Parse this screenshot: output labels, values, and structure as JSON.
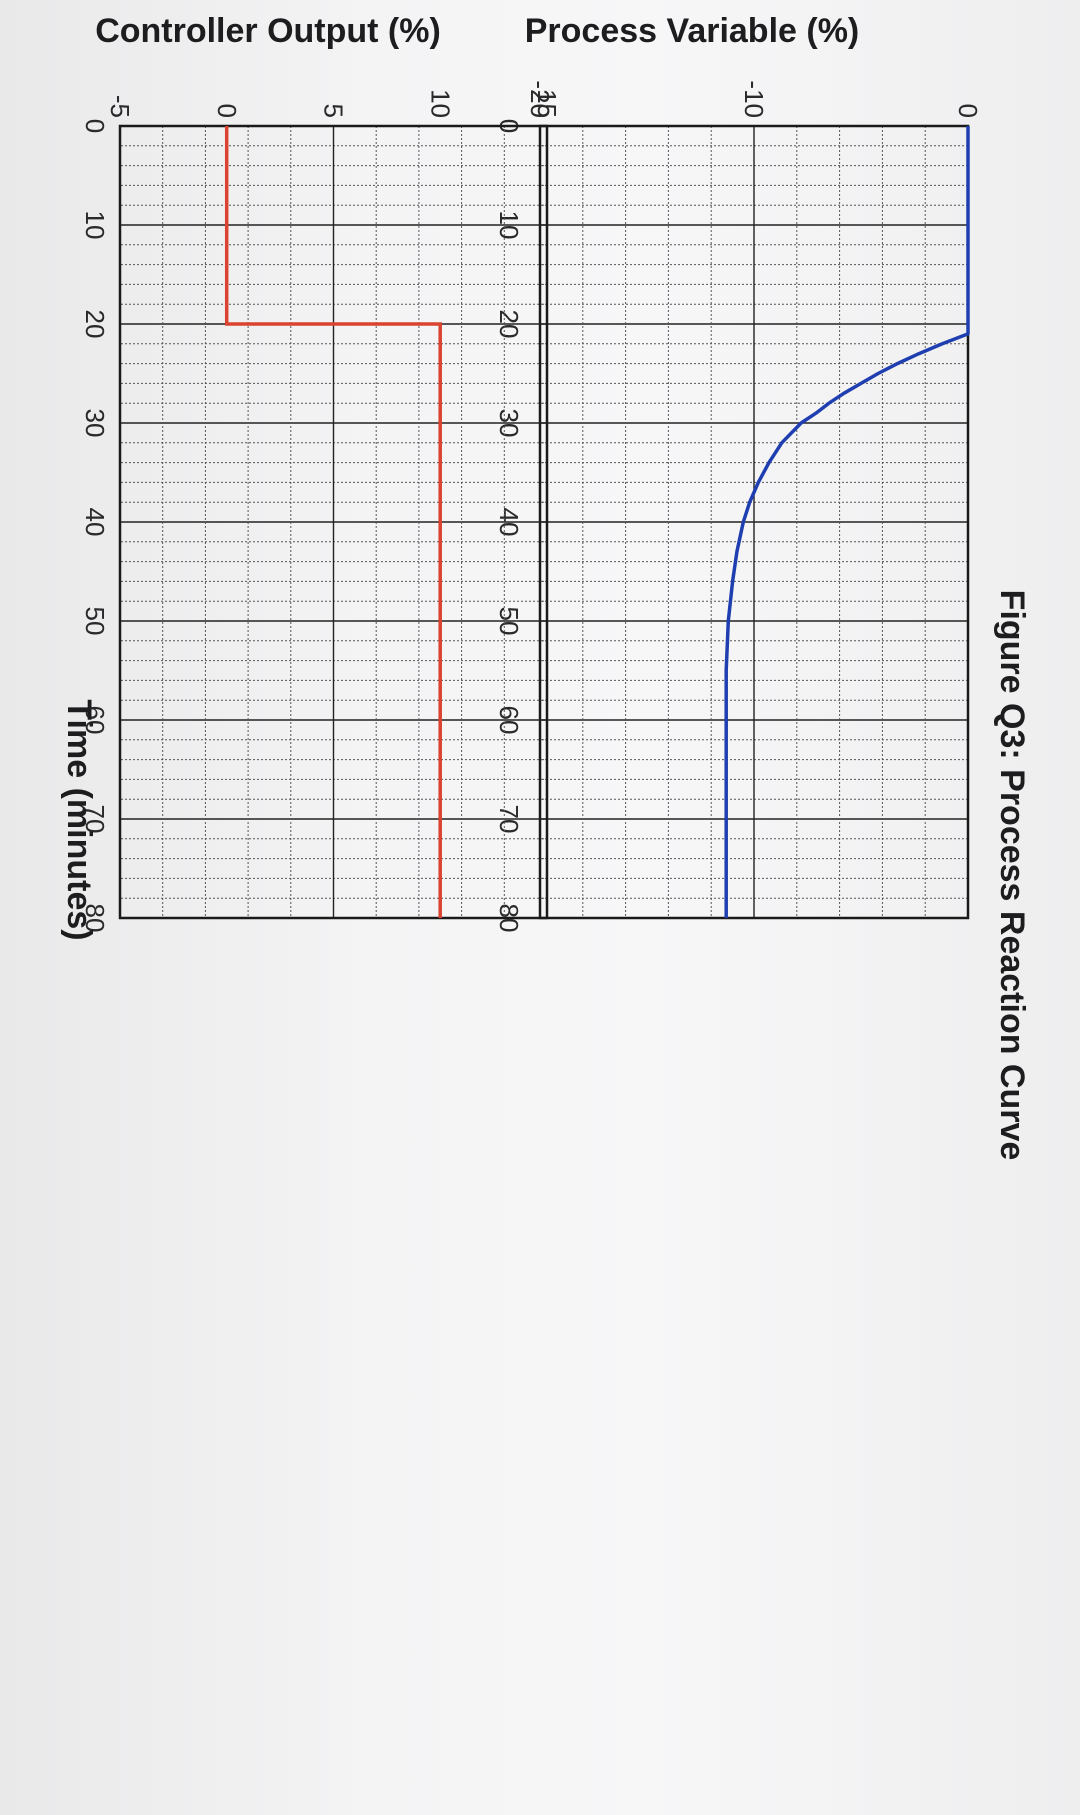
{
  "colors": {
    "pv_line": "#1f3fb0",
    "co_line": "#d9432f",
    "grid": "#333333",
    "background": "#f3f3f4"
  },
  "chart_data": [
    {
      "name": "process-variable",
      "type": "line",
      "title": "Figure Q3: Process Reaction Curve",
      "xlabel": "",
      "ylabel": "Process Variable (%)",
      "xlim": [
        0,
        80
      ],
      "ylim": [
        -20,
        0
      ],
      "xticks": [
        "0",
        "10",
        "20",
        "30",
        "40",
        "50",
        "60",
        "70",
        "80"
      ],
      "yticks": [
        "-20",
        "-10",
        "0"
      ],
      "grid": true,
      "series": [
        {
          "x": [
            0,
            21,
            22,
            23,
            24,
            25,
            26,
            27,
            28,
            29,
            30,
            32,
            34,
            36,
            38,
            40,
            43,
            46,
            50,
            55,
            60,
            70,
            80
          ],
          "y": [
            0,
            0,
            -1.2,
            -2.3,
            -3.3,
            -4.2,
            -5,
            -5.8,
            -6.5,
            -7.1,
            -7.8,
            -8.7,
            -9.3,
            -9.8,
            -10.2,
            -10.5,
            -10.8,
            -11,
            -11.2,
            -11.3,
            -11.3,
            -11.3,
            -11.3
          ]
        }
      ]
    },
    {
      "name": "controller-output",
      "type": "line",
      "title": "",
      "xlabel": "Time (minutes)",
      "ylabel": "Controller Output (%)",
      "xlim": [
        0,
        80
      ],
      "ylim": [
        -5,
        15
      ],
      "xticks": [
        "0",
        "10",
        "20",
        "30",
        "40",
        "50",
        "60",
        "70",
        "80"
      ],
      "yticks": [
        "-5",
        "0",
        "5",
        "10",
        "15"
      ],
      "grid": true,
      "series": [
        {
          "x": [
            0,
            20,
            20,
            80
          ],
          "y": [
            0,
            0,
            10,
            10
          ]
        }
      ]
    }
  ]
}
